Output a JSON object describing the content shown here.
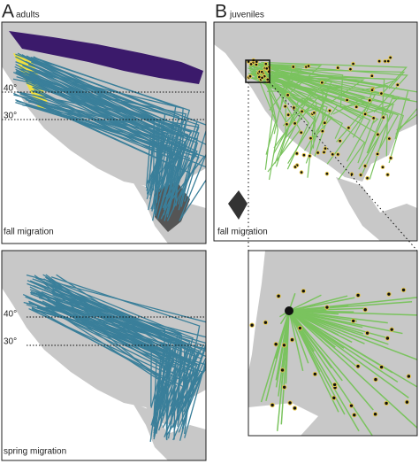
{
  "panels": [
    {
      "letter": "A",
      "label": "adults",
      "maps": [
        {
          "latitude_labels": [
            "40°",
            "30°"
          ],
          "caption": "fall migration"
        },
        {
          "latitude_labels": [
            "40°",
            "30°"
          ],
          "caption": "spring migration"
        }
      ]
    },
    {
      "letter": "B",
      "label": "juveniles",
      "maps": [
        {
          "caption": "fall migration"
        }
      ]
    }
  ]
}
